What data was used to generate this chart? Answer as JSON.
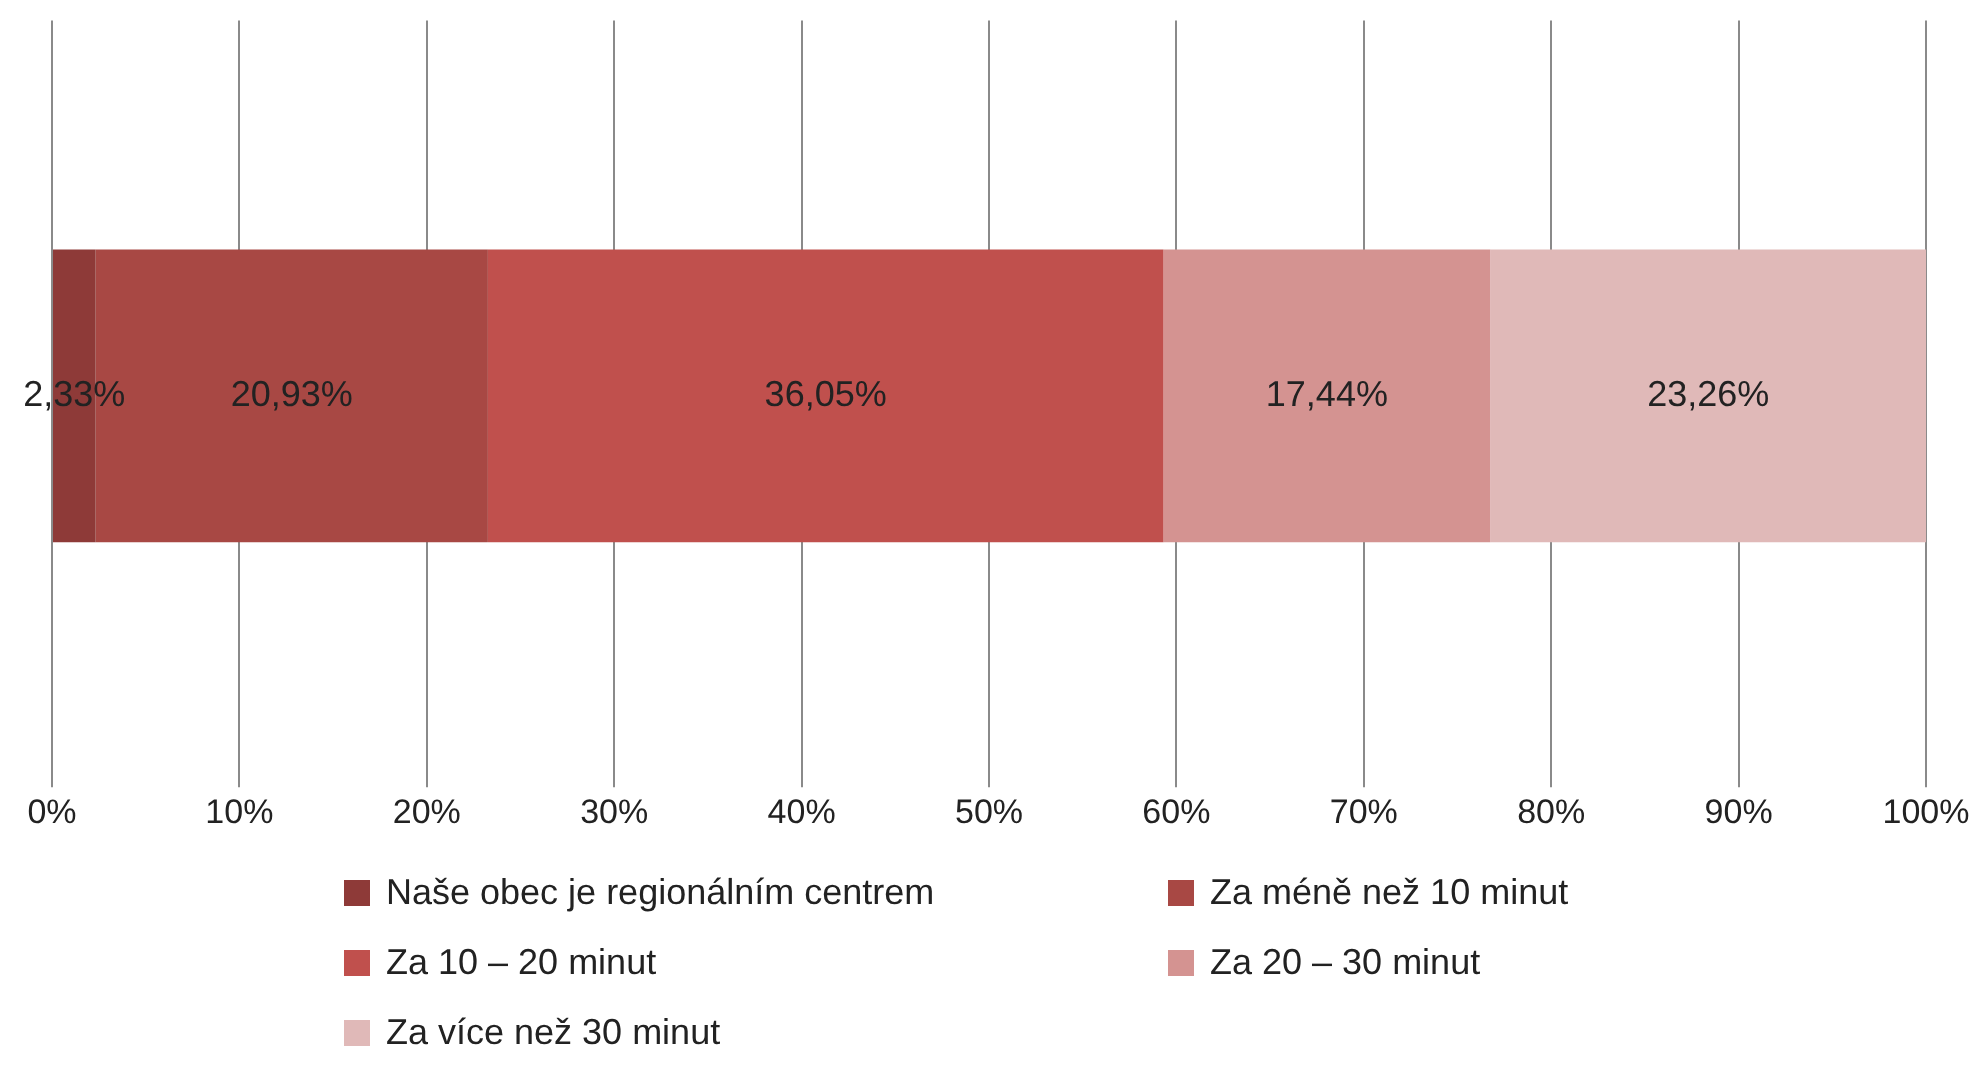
{
  "chart_data": {
    "type": "bar",
    "orientation": "horizontal",
    "stacked": true,
    "categories": [
      null
    ],
    "series": [
      {
        "name": "Naše obec je regionálním centrem",
        "color": "#8e3a38",
        "values": [
          2.33
        ],
        "value_labels": [
          "2,33%"
        ]
      },
      {
        "name": "Za méně než 10 minut",
        "color": "#a84844",
        "values": [
          20.93
        ],
        "value_labels": [
          "20,93%"
        ]
      },
      {
        "name": "Za 10 – 20 minut",
        "color": "#c0504d",
        "values": [
          36.05
        ],
        "value_labels": [
          "36,05%"
        ]
      },
      {
        "name": "Za 20 – 30 minut",
        "color": "#d49391",
        "values": [
          17.44
        ],
        "value_labels": [
          "17,44%"
        ]
      },
      {
        "name": "Za více než 30 minut",
        "color": "#e0b9b8",
        "values": [
          23.26
        ],
        "value_labels": [
          "23,26%"
        ]
      }
    ],
    "xlim": [
      0,
      100
    ],
    "xticks": [
      {
        "value": 0,
        "label": "0%"
      },
      {
        "value": 10,
        "label": "10%"
      },
      {
        "value": 20,
        "label": "20%"
      },
      {
        "value": 30,
        "label": "30%"
      },
      {
        "value": 40,
        "label": "40%"
      },
      {
        "value": 50,
        "label": "50%"
      },
      {
        "value": 60,
        "label": "60%"
      },
      {
        "value": 70,
        "label": "70%"
      },
      {
        "value": 80,
        "label": "80%"
      },
      {
        "value": 90,
        "label": "90%"
      },
      {
        "value": 100,
        "label": "100%"
      }
    ],
    "grid": "x",
    "legend": "bottom"
  }
}
